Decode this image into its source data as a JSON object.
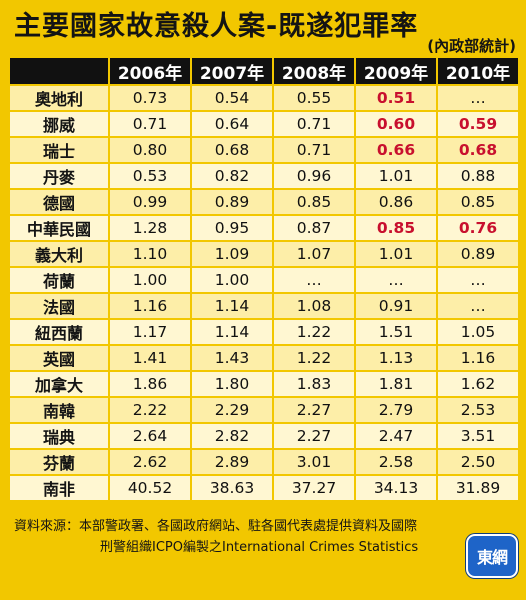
{
  "title": "主要國家故意殺人案-既遂犯罪率",
  "source_tag": "(內政部統計)",
  "footer": {
    "line1": "資料來源：本部警政署、各國政府網站、駐各國代表處提供資料及國際",
    "line2": "刑警組織ICPO編製之International Crimes Statistics"
  },
  "logo_text": "東網",
  "colors": {
    "background": "#f2c700",
    "header": "#111111",
    "highlight": "#c8102e"
  },
  "chart_data": {
    "type": "table",
    "title": "主要國家故意殺人案-既遂犯罪率",
    "columns": [
      "2006年",
      "2007年",
      "2008年",
      "2009年",
      "2010年"
    ],
    "rows": [
      {
        "country": "奧地利",
        "values": [
          "0.73",
          "0.54",
          "0.55",
          "0.51",
          "…"
        ],
        "highlight": [
          false,
          false,
          false,
          true,
          false
        ]
      },
      {
        "country": "挪威",
        "values": [
          "0.71",
          "0.64",
          "0.71",
          "0.60",
          "0.59"
        ],
        "highlight": [
          false,
          false,
          false,
          true,
          true
        ]
      },
      {
        "country": "瑞士",
        "values": [
          "0.80",
          "0.68",
          "0.71",
          "0.66",
          "0.68"
        ],
        "highlight": [
          false,
          false,
          false,
          true,
          true
        ]
      },
      {
        "country": "丹麥",
        "values": [
          "0.53",
          "0.82",
          "0.96",
          "1.01",
          "0.88"
        ],
        "highlight": [
          false,
          false,
          false,
          false,
          false
        ]
      },
      {
        "country": "德國",
        "values": [
          "0.99",
          "0.89",
          "0.85",
          "0.86",
          "0.85"
        ],
        "highlight": [
          false,
          false,
          false,
          false,
          false
        ]
      },
      {
        "country": "中華民國",
        "values": [
          "1.28",
          "0.95",
          "0.87",
          "0.85",
          "0.76"
        ],
        "highlight": [
          false,
          false,
          false,
          true,
          true
        ]
      },
      {
        "country": "義大利",
        "values": [
          "1.10",
          "1.09",
          "1.07",
          "1.01",
          "0.89"
        ],
        "highlight": [
          false,
          false,
          false,
          false,
          false
        ]
      },
      {
        "country": "荷蘭",
        "values": [
          "1.00",
          "1.00",
          "…",
          "…",
          "…"
        ],
        "highlight": [
          false,
          false,
          false,
          false,
          false
        ]
      },
      {
        "country": "法國",
        "values": [
          "1.16",
          "1.14",
          "1.08",
          "0.91",
          "…"
        ],
        "highlight": [
          false,
          false,
          false,
          false,
          false
        ]
      },
      {
        "country": "紐西蘭",
        "values": [
          "1.17",
          "1.14",
          "1.22",
          "1.51",
          "1.05"
        ],
        "highlight": [
          false,
          false,
          false,
          false,
          false
        ]
      },
      {
        "country": "英國",
        "values": [
          "1.41",
          "1.43",
          "1.22",
          "1.13",
          "1.16"
        ],
        "highlight": [
          false,
          false,
          false,
          false,
          false
        ]
      },
      {
        "country": "加拿大",
        "values": [
          "1.86",
          "1.80",
          "1.83",
          "1.81",
          "1.62"
        ],
        "highlight": [
          false,
          false,
          false,
          false,
          false
        ]
      },
      {
        "country": "南韓",
        "values": [
          "2.22",
          "2.29",
          "2.27",
          "2.79",
          "2.53"
        ],
        "highlight": [
          false,
          false,
          false,
          false,
          false
        ]
      },
      {
        "country": "瑞典",
        "values": [
          "2.64",
          "2.82",
          "2.27",
          "2.47",
          "3.51"
        ],
        "highlight": [
          false,
          false,
          false,
          false,
          false
        ]
      },
      {
        "country": "芬蘭",
        "values": [
          "2.62",
          "2.89",
          "3.01",
          "2.58",
          "2.50"
        ],
        "highlight": [
          false,
          false,
          false,
          false,
          false
        ]
      },
      {
        "country": "南非",
        "values": [
          "40.52",
          "38.63",
          "37.27",
          "34.13",
          "31.89"
        ],
        "highlight": [
          false,
          false,
          false,
          false,
          false
        ]
      }
    ]
  }
}
